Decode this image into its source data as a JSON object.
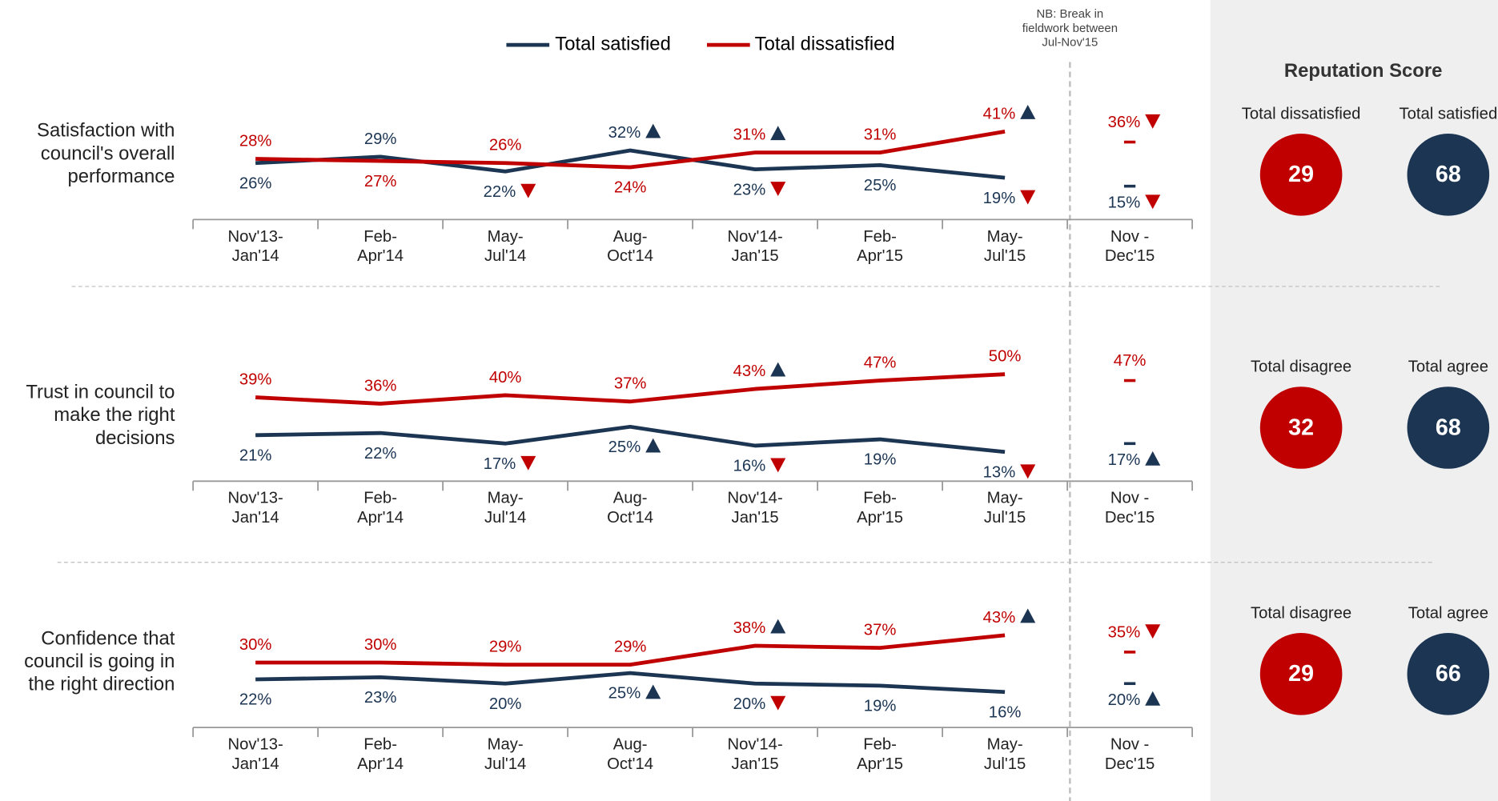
{
  "legend_note": "NB: Break in\nfieldwork between\nJul-Nov'15",
  "chart_data": [
    {
      "type": "line",
      "title": "Satisfaction with\ncouncil's overall\nperformance",
      "categories": [
        "Nov'13-\nJan'14",
        "Feb-\nApr'14",
        "May-\nJul'14",
        "Aug-\nOct'14",
        "Nov'14-\nJan'15",
        "Feb-\nApr'15",
        "May-\nJul'15",
        "Nov -\nDec'15"
      ],
      "ylim": [
        0,
        60
      ],
      "series": [
        {
          "name": "Total satisfied",
          "color": "#1b3553",
          "values": [
            26,
            29,
            22,
            32,
            23,
            25,
            19,
            15
          ],
          "value_labels": [
            "26%",
            "29%",
            "22%",
            "32%",
            "23%",
            "25%",
            "19%",
            "15%"
          ],
          "markers": [
            null,
            null,
            "down",
            "up",
            "down",
            null,
            "down",
            "down"
          ]
        },
        {
          "name": "Total dissatisfied",
          "color": "#c00000",
          "values": [
            28,
            27,
            26,
            24,
            31,
            31,
            41,
            36
          ],
          "value_labels": [
            "28%",
            "27%",
            "26%",
            "24%",
            "31%",
            "31%",
            "41%",
            "36%"
          ],
          "markers": [
            null,
            null,
            null,
            null,
            "up",
            null,
            "up",
            "down"
          ]
        }
      ]
    },
    {
      "type": "line",
      "title": "Trust in council to\nmake the right\ndecisions",
      "categories": [
        "Nov'13-\nJan'14",
        "Feb-\nApr'14",
        "May-\nJul'14",
        "Aug-\nOct'14",
        "Nov'14-\nJan'15",
        "Feb-\nApr'15",
        "May-\nJul'15",
        "Nov -\nDec'15"
      ],
      "ylim": [
        0,
        60
      ],
      "series": [
        {
          "name": "Total satisfied",
          "color": "#1b3553",
          "values": [
            21,
            22,
            17,
            25,
            16,
            19,
            13,
            17
          ],
          "value_labels": [
            "21%",
            "22%",
            "17%",
            "25%",
            "16%",
            "19%",
            "13%",
            "17%"
          ],
          "markers": [
            null,
            null,
            "down",
            "up",
            "down",
            null,
            "down",
            "up"
          ]
        },
        {
          "name": "Total dissatisfied",
          "color": "#c00000",
          "values": [
            39,
            36,
            40,
            37,
            43,
            47,
            50,
            47
          ],
          "value_labels": [
            "39%",
            "36%",
            "40%",
            "37%",
            "43%",
            "47%",
            "50%",
            "47%"
          ],
          "markers": [
            null,
            null,
            null,
            null,
            "up",
            null,
            null,
            null
          ]
        }
      ]
    },
    {
      "type": "line",
      "title": "Confidence that\ncouncil is going in\nthe right direction",
      "categories": [
        "Nov'13-\nJan'14",
        "Feb-\nApr'14",
        "May-\nJul'14",
        "Aug-\nOct'14",
        "Nov'14-\nJan'15",
        "Feb-\nApr'15",
        "May-\nJul'15",
        "Nov -\nDec'15"
      ],
      "ylim": [
        0,
        60
      ],
      "series": [
        {
          "name": "Total satisfied",
          "color": "#1b3553",
          "values": [
            22,
            23,
            20,
            25,
            20,
            19,
            16,
            20
          ],
          "value_labels": [
            "22%",
            "23%",
            "20%",
            "25%",
            "20%",
            "19%",
            "16%",
            "20%"
          ],
          "markers": [
            null,
            null,
            null,
            "up",
            "down",
            null,
            null,
            "up"
          ]
        },
        {
          "name": "Total dissatisfied",
          "color": "#c00000",
          "values": [
            30,
            30,
            29,
            29,
            38,
            37,
            43,
            35
          ],
          "value_labels": [
            "30%",
            "30%",
            "29%",
            "29%",
            "38%",
            "37%",
            "43%",
            "35%"
          ],
          "markers": [
            null,
            null,
            null,
            null,
            "up",
            null,
            "up",
            "down"
          ]
        }
      ]
    }
  ],
  "reputation_score": {
    "title": "Reputation Score",
    "rows": [
      {
        "labels": [
          "Total dissatisfied",
          "Total satisfied"
        ],
        "values": [
          29,
          68
        ],
        "colors": [
          "#c00000",
          "#1b3553"
        ]
      },
      {
        "labels": [
          "Total disagree",
          "Total agree"
        ],
        "values": [
          32,
          68
        ],
        "colors": [
          "#c00000",
          "#1b3553"
        ]
      },
      {
        "labels": [
          "Total disagree",
          "Total agree"
        ],
        "values": [
          29,
          66
        ],
        "colors": [
          "#c00000",
          "#1b3553"
        ]
      }
    ]
  }
}
